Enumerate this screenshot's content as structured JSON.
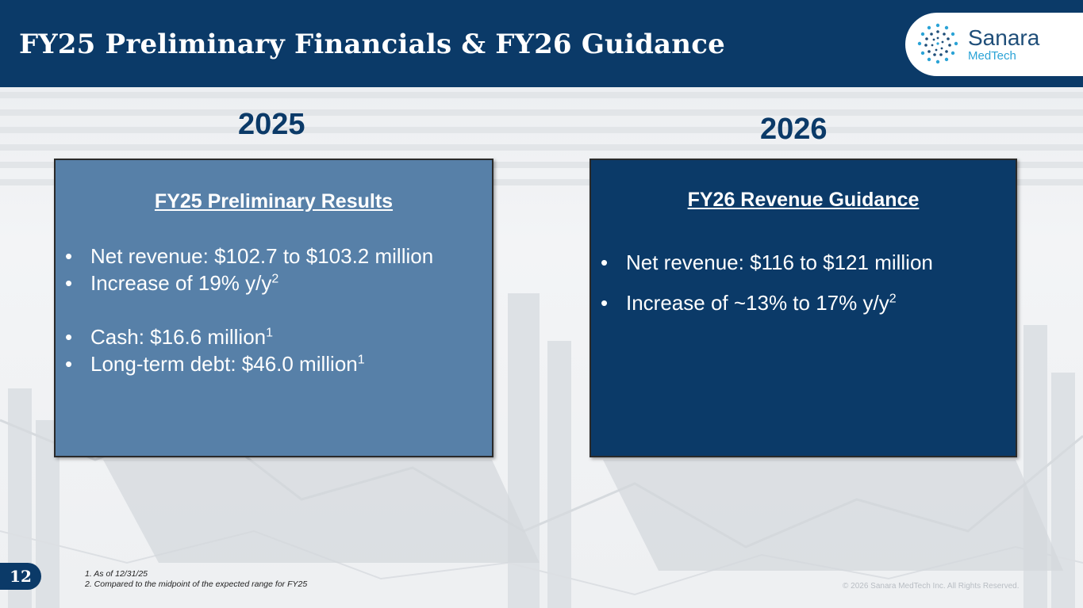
{
  "header": {
    "title": "FY25 Preliminary Financials & FY26 Guidance"
  },
  "logo": {
    "name": "Sanara",
    "sub": "MedTech",
    "icon": "sanara-logo-icon",
    "colors": {
      "name": "#1f4e79",
      "sub": "#2ba3d6"
    }
  },
  "years": {
    "left": "2025",
    "right": "2026"
  },
  "left_panel": {
    "heading": "FY25 Preliminary Results",
    "bullets": [
      {
        "text": "Net revenue: $102.7 to $103.2 million",
        "sup": ""
      },
      {
        "text": "Increase of 19% y/y",
        "sup": "2"
      },
      {
        "text": "Cash: $16.6 million",
        "sup": "1"
      },
      {
        "text": "Long-term debt: $46.0 million",
        "sup": "1"
      }
    ]
  },
  "right_panel": {
    "heading": "FY26 Revenue Guidance",
    "bullets": [
      {
        "text": "Net revenue: $116 to $121 million",
        "sup": ""
      },
      {
        "text": "Increase of ~13% to 17% y/y",
        "sup": "2"
      }
    ]
  },
  "bullet_char": "•",
  "page_number": "12",
  "footnotes": [
    "1. As of 12/31/25",
    "2. Compared to the midpoint of the expected range for FY25"
  ],
  "copyright": "© 2026 Sanara MedTech Inc. All Rights Reserved.",
  "colors": {
    "navy": "#0b3a68",
    "steel_blue": "#5780a8",
    "background": "#eef0f2"
  }
}
